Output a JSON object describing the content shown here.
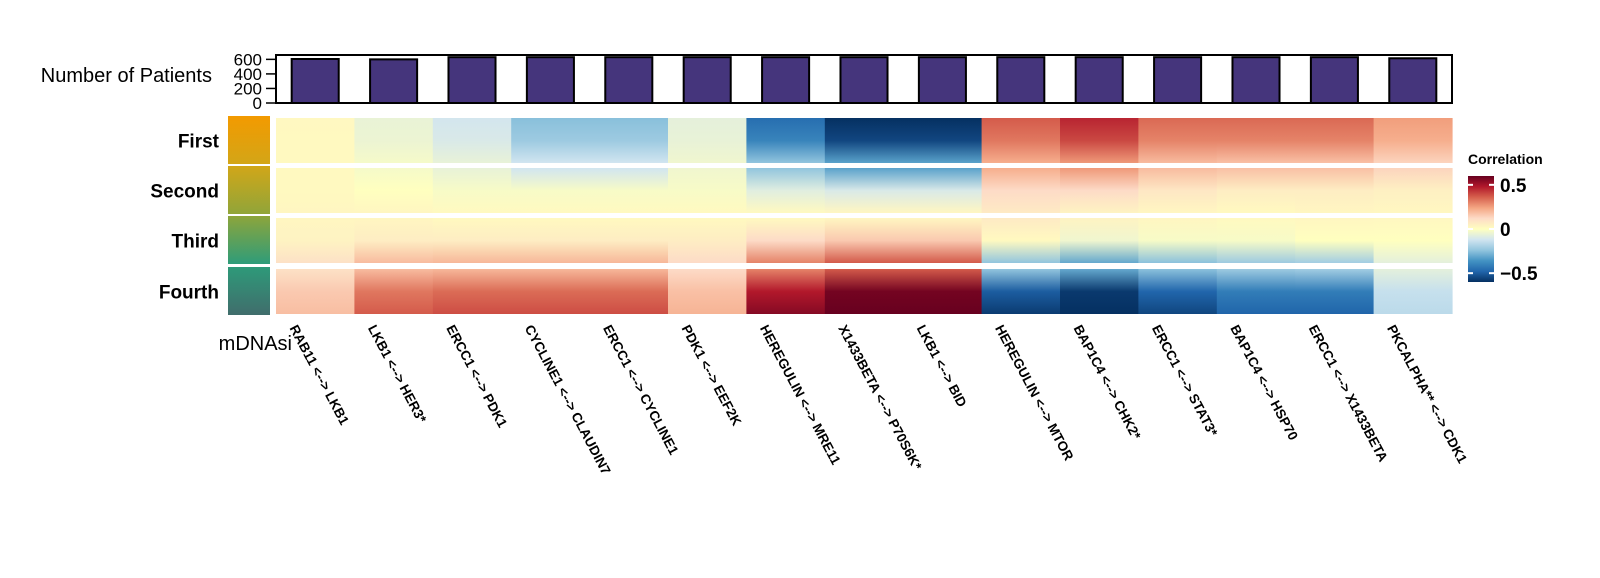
{
  "chart_data": {
    "type": "heatmap",
    "bar_panel": {
      "label": "Number of Patients",
      "y_ticks": [
        "600",
        "400",
        "200",
        "0"
      ],
      "ylim": [
        0,
        660
      ],
      "values": [
        605,
        600,
        630,
        630,
        630,
        630,
        630,
        630,
        630,
        630,
        630,
        630,
        630,
        630,
        615
      ],
      "bar_color": "#45357C"
    },
    "rows": [
      "First",
      "Second",
      "Third",
      "Fourth"
    ],
    "row_colors": [
      "#F39A00",
      "#D2A618",
      "#8FA53A",
      "#2D9C7A"
    ],
    "row_axis_label": "mDNAsi",
    "columns": [
      "RAB11 <--> LKB1",
      "LKB1 <--> HER3*",
      "ERCC1 <--> PDK1",
      "CYCLINE1 <--> CLAUDIN7",
      "ERCC1 <--> CYCLINE1",
      "PDK1 <--> EEF2K",
      "HEREGULIN <--> MRE11",
      "X1433BETA <--> P70S6K*",
      "LKB1 <--> BID",
      "HEREGULIN <--> MTOR",
      "BAP1C4 <--> CHK2*",
      "ERCC1 <--> STAT3*",
      "BAP1C4 <--> HSP70",
      "ERCC1 <--> X1433BETA",
      "PKCALPHA** <--> CDK1"
    ],
    "values": [
      [
        0.02,
        -0.05,
        -0.1,
        -0.22,
        -0.22,
        -0.06,
        -0.4,
        -0.55,
        -0.55,
        0.32,
        0.4,
        0.3,
        0.3,
        0.3,
        0.22
      ],
      [
        0.02,
        0.0,
        -0.02,
        -0.02,
        -0.02,
        -0.02,
        -0.08,
        -0.1,
        -0.1,
        0.12,
        0.12,
        0.08,
        0.06,
        0.06,
        0.05
      ],
      [
        0.04,
        0.06,
        0.06,
        0.06,
        0.06,
        0.06,
        0.12,
        0.16,
        0.16,
        0.02,
        -0.04,
        -0.02,
        -0.02,
        0.0,
        0.0
      ],
      [
        0.16,
        0.32,
        0.34,
        0.34,
        0.34,
        0.18,
        0.48,
        0.58,
        0.58,
        -0.5,
        -0.58,
        -0.48,
        -0.42,
        -0.42,
        -0.14
      ]
    ],
    "legend": {
      "title": "Correlation",
      "ticks": [
        "0.5",
        "0",
        "−0.5"
      ],
      "range": [
        -0.6,
        0.6
      ],
      "placement": "right",
      "colors": [
        "#053061",
        "#2166AC",
        "#4393C3",
        "#92C5DE",
        "#D1E5F0",
        "#FFFFBF",
        "#FDDBC7",
        "#F4A582",
        "#D6604D",
        "#B2182B",
        "#67001F"
      ]
    }
  }
}
